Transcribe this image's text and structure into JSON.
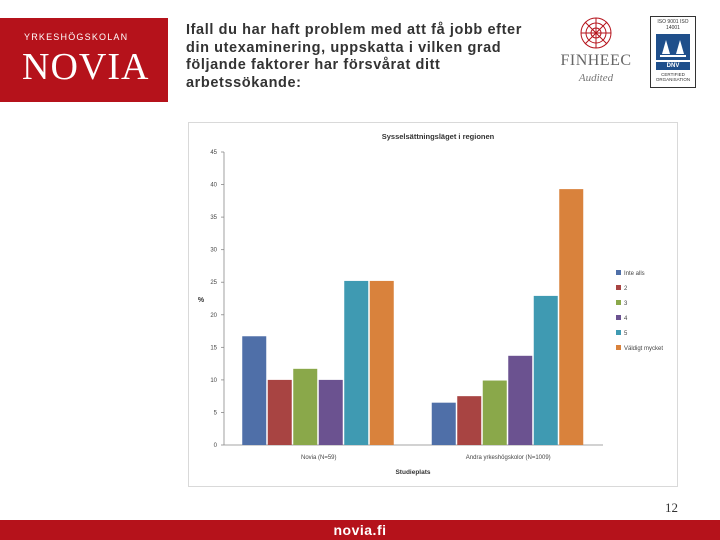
{
  "logo": {
    "small": "YRKESHÖGSKOLAN",
    "big": "NOVIA"
  },
  "headline": "Ifall du har haft problem med att få jobb efter din utexaminering, uppskatta i vilken grad följande faktorer har försvårat ditt arbetssökande:",
  "finheec": {
    "name": "FINHEEC",
    "sub": "Audited"
  },
  "dnv": {
    "top": "ISO 9001 ISO 14001",
    "label": "DNV",
    "bottom": "CERTIFIED ORGANISATION"
  },
  "page_number": "12",
  "footer": "novia.fi",
  "chart_data": {
    "type": "bar",
    "title": "Sysselsättningsläget i regionen",
    "xlabel": "Studieplats",
    "ylabel": "%",
    "ylim": [
      0,
      45
    ],
    "yticks": [
      0,
      5,
      10,
      15,
      20,
      25,
      30,
      35,
      40,
      45
    ],
    "grid": false,
    "legend_position": "right",
    "categories": [
      "Novia (N=59)",
      "Andra yrkeshögskolor (N=1009)"
    ],
    "series": [
      {
        "name": "Inte alls",
        "color": "#4f6fa8",
        "values": [
          16.7,
          6.5
        ]
      },
      {
        "name": "2",
        "color": "#a84442",
        "values": [
          10.0,
          7.5
        ]
      },
      {
        "name": "3",
        "color": "#8aa84a",
        "values": [
          11.7,
          9.9
        ]
      },
      {
        "name": "4",
        "color": "#6b5290",
        "values": [
          10.0,
          13.7
        ]
      },
      {
        "name": "5",
        "color": "#3f9ab2",
        "values": [
          25.2,
          22.9
        ]
      },
      {
        "name": "Väldigt mycket",
        "color": "#d9823c",
        "values": [
          25.2,
          39.3
        ]
      }
    ]
  }
}
